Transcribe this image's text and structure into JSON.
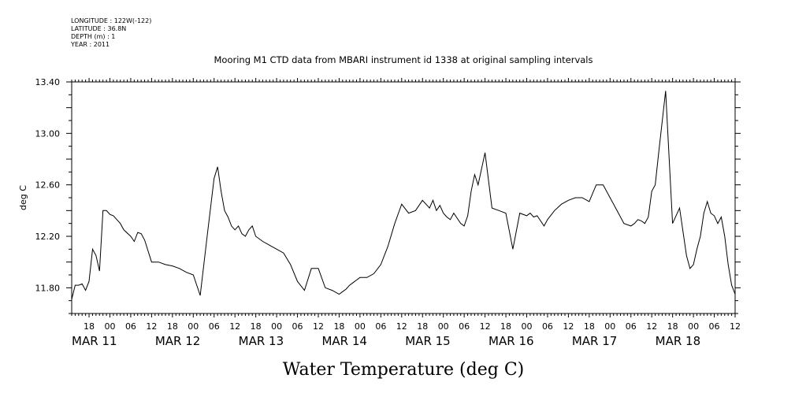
{
  "header": {
    "longitude": "LONGITUDE : 122W(-122)",
    "latitude": "LATITUDE : 36.8N",
    "depth": "DEPTH (m) : 1",
    "year": "YEAR : 2011"
  },
  "chart_data": {
    "type": "line",
    "title": "Mooring M1 CTD data from MBARI instrument id 1338 at original sampling intervals",
    "ylabel": "deg C",
    "xlabel": "Water Temperature (deg C)",
    "ylim": [
      11.6,
      13.4
    ],
    "y_ticks": [
      "11.80",
      "12.20",
      "12.60",
      "13.00",
      "13.40"
    ],
    "xlim_hours": [
      13,
      204
    ],
    "hour_ticks": [
      "18",
      "00",
      "06",
      "12",
      "18",
      "00",
      "06",
      "12",
      "18",
      "00",
      "06",
      "12",
      "18",
      "00",
      "06",
      "12",
      "18",
      "00",
      "06",
      "12",
      "18",
      "00",
      "06",
      "12",
      "18",
      "00",
      "06",
      "12",
      "18",
      "00",
      "06",
      "12"
    ],
    "day_labels": [
      "MAR 11",
      "MAR 12",
      "MAR 13",
      "MAR 14",
      "MAR 15",
      "MAR 16",
      "MAR 17",
      "MAR 18"
    ],
    "series": [
      {
        "x": [
          13,
          14,
          15,
          16,
          17,
          18,
          19,
          20,
          21,
          22,
          23,
          24,
          25,
          26,
          27,
          28,
          30,
          31,
          32,
          33,
          34,
          36,
          38,
          40,
          42,
          44,
          46,
          48,
          50,
          52,
          54,
          55,
          56,
          57,
          58,
          59,
          60,
          61,
          62,
          63,
          64,
          65,
          66,
          68,
          70,
          72,
          74,
          76,
          78,
          80,
          82,
          84,
          86,
          88,
          90,
          91,
          92,
          93,
          94,
          95,
          96,
          98,
          100,
          102,
          104,
          106,
          108,
          110,
          112,
          114,
          116,
          117,
          118,
          119,
          120,
          121,
          122,
          123,
          124,
          125,
          126,
          127,
          128,
          129,
          130,
          132,
          134,
          136,
          138,
          140,
          142,
          144,
          145,
          146,
          147,
          148,
          149,
          150,
          152,
          154,
          156,
          158,
          160,
          162,
          164,
          166,
          168,
          170,
          172,
          174,
          175,
          176,
          177,
          178,
          179,
          180,
          181,
          182,
          184,
          186,
          188,
          190,
          191,
          192,
          193,
          194,
          195,
          196,
          197,
          198,
          199,
          200,
          201,
          202,
          203,
          204
        ],
        "y": [
          11.71,
          11.82,
          11.82,
          11.83,
          11.78,
          11.85,
          12.1,
          12.05,
          11.93,
          12.4,
          12.4,
          12.37,
          12.36,
          12.33,
          12.3,
          12.25,
          12.2,
          12.16,
          12.23,
          12.22,
          12.17,
          12.0,
          12.0,
          11.98,
          11.97,
          11.95,
          11.92,
          11.9,
          11.74,
          12.2,
          12.65,
          12.74,
          12.55,
          12.4,
          12.35,
          12.28,
          12.25,
          12.28,
          12.22,
          12.2,
          12.25,
          12.28,
          12.2,
          12.16,
          12.13,
          12.1,
          12.07,
          11.98,
          11.85,
          11.78,
          11.95,
          11.95,
          11.8,
          11.78,
          11.75,
          11.77,
          11.79,
          11.82,
          11.84,
          11.86,
          11.88,
          11.88,
          11.91,
          11.98,
          12.12,
          12.3,
          12.45,
          12.38,
          12.4,
          12.48,
          12.42,
          12.48,
          12.4,
          12.44,
          12.38,
          12.35,
          12.33,
          12.38,
          12.34,
          12.3,
          12.28,
          12.36,
          12.55,
          12.68,
          12.6,
          12.85,
          12.42,
          12.4,
          12.38,
          12.1,
          12.38,
          12.36,
          12.38,
          12.35,
          12.36,
          12.32,
          12.28,
          12.33,
          12.4,
          12.45,
          12.48,
          12.5,
          12.5,
          12.47,
          12.6,
          12.6,
          12.5,
          12.4,
          12.3,
          12.28,
          12.3,
          12.33,
          12.32,
          12.3,
          12.35,
          12.55,
          12.6,
          12.85,
          13.33,
          12.3,
          12.42,
          12.05,
          11.95,
          11.98,
          12.1,
          12.2,
          12.38,
          12.47,
          12.38,
          12.36,
          12.3,
          12.35,
          12.2,
          11.98,
          11.82,
          11.75
        ]
      }
    ]
  }
}
